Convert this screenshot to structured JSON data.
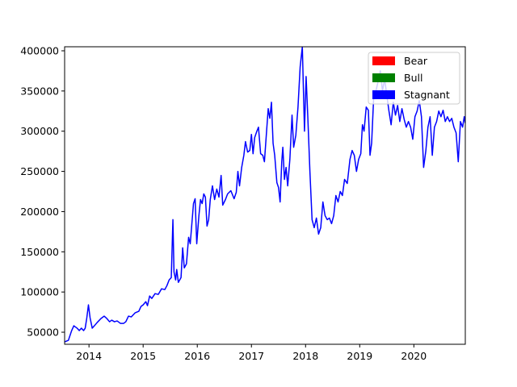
{
  "chart_data": {
    "type": "line",
    "title": "",
    "xlabel": "",
    "ylabel": "",
    "xlim": [
      2013.55,
      2020.95
    ],
    "ylim": [
      35000,
      405000
    ],
    "grid": false,
    "legend_placement": "top-right",
    "x_ticks": [
      {
        "value": 2014,
        "label": "2014"
      },
      {
        "value": 2015,
        "label": "2015"
      },
      {
        "value": 2016,
        "label": "2016"
      },
      {
        "value": 2017,
        "label": "2017"
      },
      {
        "value": 2018,
        "label": "2018"
      },
      {
        "value": 2019,
        "label": "2019"
      },
      {
        "value": 2020,
        "label": "2020"
      }
    ],
    "y_ticks": [
      {
        "value": 50000,
        "label": "50000"
      },
      {
        "value": 100000,
        "label": "100000"
      },
      {
        "value": 150000,
        "label": "150000"
      },
      {
        "value": 200000,
        "label": "200000"
      },
      {
        "value": 250000,
        "label": "250000"
      },
      {
        "value": 300000,
        "label": "300000"
      },
      {
        "value": 350000,
        "label": "350000"
      },
      {
        "value": 400000,
        "label": "400000"
      }
    ],
    "legend": [
      {
        "label": "Bear",
        "color": "#ff0000"
      },
      {
        "label": "Bull",
        "color": "#008000"
      },
      {
        "label": "Stagnant",
        "color": "#0000ff"
      }
    ],
    "series": [
      {
        "color": "#0000ff",
        "points": [
          [
            2013.55,
            38000
          ],
          [
            2013.62,
            40000
          ],
          [
            2013.68,
            52000
          ],
          [
            2013.72,
            58000
          ],
          [
            2013.78,
            55000
          ],
          [
            2013.82,
            52000
          ],
          [
            2013.86,
            55000
          ],
          [
            2013.9,
            52000
          ],
          [
            2013.93,
            55000
          ],
          [
            2013.96,
            68000
          ],
          [
            2013.99,
            84000
          ],
          [
            2014.02,
            68000
          ],
          [
            2014.06,
            55000
          ],
          [
            2014.1,
            58000
          ],
          [
            2014.15,
            62000
          ],
          [
            2014.22,
            67000
          ],
          [
            2014.28,
            70000
          ],
          [
            2014.33,
            67000
          ],
          [
            2014.38,
            63000
          ],
          [
            2014.42,
            65000
          ],
          [
            2014.47,
            63000
          ],
          [
            2014.52,
            64000
          ],
          [
            2014.58,
            61000
          ],
          [
            2014.64,
            61000
          ],
          [
            2014.68,
            63000
          ],
          [
            2014.73,
            70000
          ],
          [
            2014.78,
            69000
          ],
          [
            2014.85,
            74000
          ],
          [
            2014.92,
            76000
          ],
          [
            2014.96,
            82000
          ],
          [
            2015.0,
            84000
          ],
          [
            2015.05,
            88000
          ],
          [
            2015.08,
            83000
          ],
          [
            2015.12,
            95000
          ],
          [
            2015.16,
            92000
          ],
          [
            2015.22,
            98000
          ],
          [
            2015.28,
            97000
          ],
          [
            2015.34,
            104000
          ],
          [
            2015.4,
            103000
          ],
          [
            2015.44,
            108000
          ],
          [
            2015.48,
            115000
          ],
          [
            2015.52,
            118000
          ],
          [
            2015.55,
            190000
          ],
          [
            2015.57,
            125000
          ],
          [
            2015.6,
            115000
          ],
          [
            2015.62,
            128000
          ],
          [
            2015.65,
            112000
          ],
          [
            2015.7,
            118000
          ],
          [
            2015.73,
            155000
          ],
          [
            2015.76,
            130000
          ],
          [
            2015.8,
            135000
          ],
          [
            2015.84,
            168000
          ],
          [
            2015.87,
            160000
          ],
          [
            2015.9,
            185000
          ],
          [
            2015.93,
            210000
          ],
          [
            2015.96,
            216000
          ],
          [
            2015.99,
            160000
          ],
          [
            2016.03,
            195000
          ],
          [
            2016.06,
            215000
          ],
          [
            2016.09,
            210000
          ],
          [
            2016.12,
            222000
          ],
          [
            2016.15,
            218000
          ],
          [
            2016.18,
            182000
          ],
          [
            2016.21,
            190000
          ],
          [
            2016.24,
            215000
          ],
          [
            2016.28,
            232000
          ],
          [
            2016.32,
            215000
          ],
          [
            2016.36,
            228000
          ],
          [
            2016.4,
            218000
          ],
          [
            2016.44,
            245000
          ],
          [
            2016.47,
            208000
          ],
          [
            2016.52,
            215000
          ],
          [
            2016.56,
            222000
          ],
          [
            2016.62,
            226000
          ],
          [
            2016.68,
            216000
          ],
          [
            2016.72,
            224000
          ],
          [
            2016.75,
            250000
          ],
          [
            2016.78,
            232000
          ],
          [
            2016.82,
            255000
          ],
          [
            2016.86,
            270000
          ],
          [
            2016.89,
            287000
          ],
          [
            2016.93,
            274000
          ],
          [
            2016.97,
            276000
          ],
          [
            2017.0,
            296000
          ],
          [
            2017.03,
            272000
          ],
          [
            2017.06,
            292000
          ],
          [
            2017.1,
            300000
          ],
          [
            2017.13,
            305000
          ],
          [
            2017.17,
            272000
          ],
          [
            2017.21,
            270000
          ],
          [
            2017.24,
            262000
          ],
          [
            2017.28,
            300000
          ],
          [
            2017.31,
            328000
          ],
          [
            2017.34,
            316000
          ],
          [
            2017.37,
            336000
          ],
          [
            2017.4,
            285000
          ],
          [
            2017.43,
            270000
          ],
          [
            2017.47,
            236000
          ],
          [
            2017.5,
            230000
          ],
          [
            2017.53,
            212000
          ],
          [
            2017.56,
            262000
          ],
          [
            2017.58,
            280000
          ],
          [
            2017.61,
            240000
          ],
          [
            2017.64,
            255000
          ],
          [
            2017.67,
            232000
          ],
          [
            2017.71,
            265000
          ],
          [
            2017.75,
            320000
          ],
          [
            2017.78,
            280000
          ],
          [
            2017.82,
            295000
          ],
          [
            2017.86,
            330000
          ],
          [
            2017.9,
            380000
          ],
          [
            2017.94,
            405000
          ],
          [
            2017.98,
            300000
          ],
          [
            2018.01,
            368000
          ],
          [
            2018.04,
            320000
          ],
          [
            2018.08,
            250000
          ],
          [
            2018.12,
            190000
          ],
          [
            2018.16,
            180000
          ],
          [
            2018.2,
            192000
          ],
          [
            2018.24,
            172000
          ],
          [
            2018.28,
            180000
          ],
          [
            2018.32,
            212000
          ],
          [
            2018.36,
            195000
          ],
          [
            2018.4,
            190000
          ],
          [
            2018.44,
            192000
          ],
          [
            2018.48,
            185000
          ],
          [
            2018.52,
            195000
          ],
          [
            2018.56,
            220000
          ],
          [
            2018.6,
            212000
          ],
          [
            2018.64,
            225000
          ],
          [
            2018.68,
            220000
          ],
          [
            2018.72,
            240000
          ],
          [
            2018.77,
            235000
          ],
          [
            2018.82,
            265000
          ],
          [
            2018.86,
            276000
          ],
          [
            2018.9,
            270000
          ],
          [
            2018.94,
            250000
          ],
          [
            2018.98,
            265000
          ],
          [
            2019.02,
            272000
          ],
          [
            2019.05,
            308000
          ],
          [
            2019.08,
            300000
          ],
          [
            2019.12,
            330000
          ],
          [
            2019.16,
            326000
          ],
          [
            2019.19,
            270000
          ],
          [
            2019.22,
            285000
          ],
          [
            2019.26,
            345000
          ],
          [
            2019.3,
            350000
          ],
          [
            2019.34,
            362000
          ],
          [
            2019.38,
            375000
          ],
          [
            2019.42,
            350000
          ],
          [
            2019.46,
            365000
          ],
          [
            2019.5,
            345000
          ],
          [
            2019.54,
            325000
          ],
          [
            2019.58,
            308000
          ],
          [
            2019.62,
            336000
          ],
          [
            2019.66,
            320000
          ],
          [
            2019.7,
            332000
          ],
          [
            2019.74,
            312000
          ],
          [
            2019.78,
            328000
          ],
          [
            2019.82,
            315000
          ],
          [
            2019.86,
            305000
          ],
          [
            2019.9,
            312000
          ],
          [
            2019.94,
            305000
          ],
          [
            2019.98,
            290000
          ],
          [
            2020.02,
            318000
          ],
          [
            2020.06,
            325000
          ],
          [
            2020.1,
            338000
          ],
          [
            2020.14,
            318000
          ],
          [
            2020.18,
            255000
          ],
          [
            2020.22,
            275000
          ],
          [
            2020.26,
            305000
          ],
          [
            2020.3,
            318000
          ],
          [
            2020.34,
            270000
          ],
          [
            2020.38,
            305000
          ],
          [
            2020.42,
            312000
          ],
          [
            2020.46,
            325000
          ],
          [
            2020.5,
            318000
          ],
          [
            2020.54,
            326000
          ],
          [
            2020.58,
            312000
          ],
          [
            2020.62,
            318000
          ],
          [
            2020.66,
            312000
          ],
          [
            2020.7,
            316000
          ],
          [
            2020.74,
            305000
          ],
          [
            2020.78,
            298000
          ],
          [
            2020.82,
            262000
          ],
          [
            2020.86,
            312000
          ],
          [
            2020.9,
            305000
          ],
          [
            2020.93,
            318000
          ],
          [
            2020.95,
            310000
          ]
        ]
      }
    ]
  }
}
